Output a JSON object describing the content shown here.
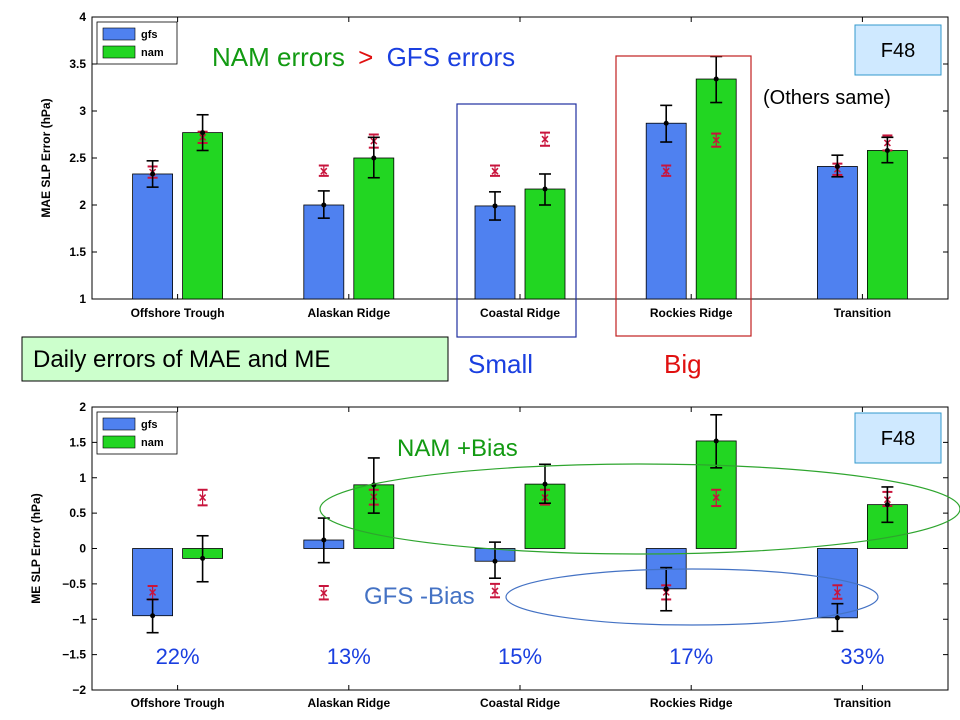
{
  "colors": {
    "gfs": "#4f81f0",
    "nam": "#22d622",
    "obs_marker": "#c8143c",
    "red_text": "#e01010",
    "blue_text": "#1a3fe0",
    "green_text": "#129a12",
    "box_fill": "#ccffcc",
    "f48_fill": "#cfe9ff",
    "green_ellipse": "#2ea52e",
    "blue_ellipse": "#4472c4",
    "blue_box": "#2030a0",
    "red_box": "#c02020"
  },
  "annotations": {
    "top_nam": "NAM errors",
    "top_gt": ">",
    "top_gfs": "GFS errors",
    "others_same": "(Others same)",
    "f48_top": "F48",
    "f48_bottom": "F48",
    "daily_box": "Daily errors of MAE and ME",
    "small": "Small",
    "big": "Big",
    "nam_bias": "NAM +Bias",
    "gfs_bias": "GFS -Bias"
  },
  "chart_data": [
    {
      "type": "bar",
      "ylabel": "MAE  SLP Error (hPa)",
      "ylim": [
        1,
        4
      ],
      "yticks": [
        "1",
        "1.5",
        "2",
        "2.5",
        "3",
        "3.5",
        "4"
      ],
      "categories": [
        "Offshore Trough",
        "Alaskan Ridge",
        "Coastal Ridge",
        "Rockies Ridge",
        "Transition"
      ],
      "legend": {
        "position": "top-left",
        "entries": [
          "gfs",
          "nam"
        ]
      },
      "series": [
        {
          "name": "gfs",
          "values": [
            2.33,
            2.0,
            1.99,
            2.87,
            2.41
          ],
          "err_low": [
            2.19,
            1.86,
            1.84,
            2.67,
            2.3
          ],
          "err_high": [
            2.47,
            2.15,
            2.14,
            3.06,
            2.53
          ],
          "dot": [
            2.33,
            2.0,
            1.99,
            2.87,
            2.41
          ],
          "ref": [
            2.35,
            2.36,
            2.36,
            2.36,
            2.38
          ],
          "ref_low": [
            2.29,
            2.31,
            2.31,
            2.31,
            2.32
          ],
          "ref_high": [
            2.41,
            2.42,
            2.42,
            2.42,
            2.44
          ]
        },
        {
          "name": "nam",
          "values": [
            2.77,
            2.5,
            2.17,
            3.34,
            2.58
          ],
          "err_low": [
            2.58,
            2.29,
            2.0,
            3.09,
            2.45
          ],
          "err_high": [
            2.96,
            2.72,
            2.33,
            3.58,
            2.72
          ],
          "dot": [
            2.77,
            2.5,
            2.17,
            3.34,
            2.58
          ],
          "ref": [
            2.72,
            2.68,
            2.7,
            2.69,
            2.66
          ],
          "ref_low": [
            2.66,
            2.61,
            2.63,
            2.62,
            2.58
          ],
          "ref_high": [
            2.78,
            2.75,
            2.77,
            2.76,
            2.74
          ]
        }
      ]
    },
    {
      "type": "bar",
      "ylabel": "ME  SLP Error (hPa)",
      "ylim": [
        -2,
        2
      ],
      "yticks": [
        "−2",
        "−1.5",
        "−1",
        "−0.5",
        "0",
        "0.5",
        "1",
        "1.5",
        "2"
      ],
      "categories": [
        "Offshore Trough",
        "Alaskan Ridge",
        "Coastal Ridge",
        "Rockies Ridge",
        "Transition"
      ],
      "legend": {
        "position": "top-left",
        "entries": [
          "gfs",
          "nam"
        ]
      },
      "percentages": [
        "22%",
        "13%",
        "15%",
        "17%",
        "33%"
      ],
      "series": [
        {
          "name": "gfs",
          "values": [
            -0.95,
            0.12,
            -0.18,
            -0.57,
            -0.98
          ],
          "err_low": [
            -1.19,
            -0.2,
            -0.42,
            -0.88,
            -1.17
          ],
          "err_high": [
            -0.72,
            0.43,
            0.09,
            -0.27,
            -0.78
          ],
          "dot": [
            -0.95,
            0.12,
            -0.18,
            -0.57,
            -0.98
          ],
          "ref": [
            -0.62,
            -0.63,
            -0.6,
            -0.62,
            -0.62
          ],
          "ref_low": [
            -0.72,
            -0.72,
            -0.69,
            -0.72,
            -0.71
          ],
          "ref_high": [
            -0.53,
            -0.53,
            -0.5,
            -0.52,
            -0.52
          ]
        },
        {
          "name": "nam",
          "values": [
            -0.14,
            0.9,
            0.91,
            1.52,
            0.62
          ],
          "err_low": [
            -0.47,
            0.5,
            0.64,
            1.14,
            0.37
          ],
          "err_high": [
            0.18,
            1.28,
            1.19,
            1.89,
            0.87
          ],
          "dot": [
            -0.14,
            0.9,
            0.91,
            1.52,
            0.62
          ],
          "ref": [
            0.72,
            0.73,
            0.72,
            0.72,
            0.69
          ],
          "ref_low": [
            0.61,
            0.62,
            0.62,
            0.6,
            0.6
          ],
          "ref_high": [
            0.83,
            0.83,
            0.83,
            0.83,
            0.8
          ]
        }
      ]
    }
  ]
}
